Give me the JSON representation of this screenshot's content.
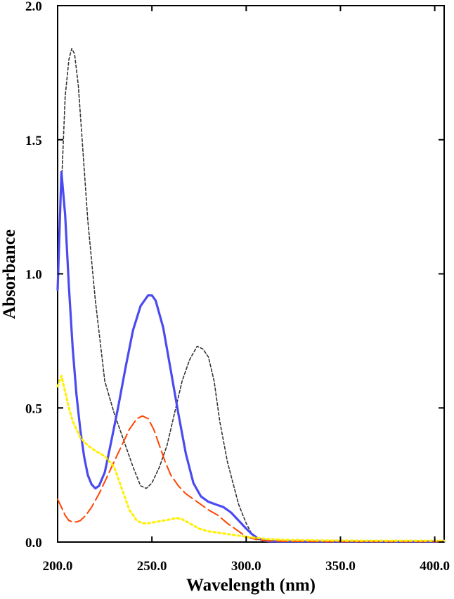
{
  "chart_data": {
    "type": "line",
    "title": "",
    "xlabel": "Wavelength (nm)",
    "ylabel": "Absorbance",
    "xlim": [
      200,
      405
    ],
    "ylim": [
      0,
      2
    ],
    "xticks": [
      200,
      250,
      300,
      350,
      400
    ],
    "xtick_labels": [
      "200.0",
      "250.0",
      "300.0",
      "350.0",
      "400.0"
    ],
    "yticks": [
      0,
      0.5,
      1,
      1.5,
      2
    ],
    "ytick_labels": [
      "0.0",
      "0.5",
      "1.0",
      "1.5",
      "2.0"
    ],
    "grid": false,
    "legend": "none",
    "series": [
      {
        "color": "#333333",
        "style": "short-dash",
        "x": [
          202,
          204,
          206,
          207.5,
          209,
          211,
          213,
          216,
          220,
          225,
          230,
          235,
          240,
          244,
          247,
          250,
          254,
          258,
          262,
          266,
          270,
          274,
          277,
          280,
          283,
          286,
          290,
          293,
          296,
          300,
          303,
          306,
          310,
          320,
          340,
          360,
          380,
          400,
          405
        ],
        "y": [
          1.32,
          1.66,
          1.8,
          1.84,
          1.82,
          1.7,
          1.5,
          1.2,
          0.9,
          0.6,
          0.48,
          0.38,
          0.28,
          0.21,
          0.2,
          0.22,
          0.28,
          0.36,
          0.48,
          0.6,
          0.68,
          0.73,
          0.72,
          0.69,
          0.6,
          0.45,
          0.3,
          0.22,
          0.14,
          0.07,
          0.03,
          0.01,
          0.005,
          0.003,
          0.002,
          0.002,
          0.002,
          0.002,
          0.002
        ]
      },
      {
        "color": "#4a4af0",
        "style": "solid",
        "x": [
          200,
          202,
          204,
          206,
          208,
          210,
          212,
          214,
          216,
          218,
          220,
          222,
          225,
          228,
          232,
          236,
          240,
          244,
          248,
          250,
          252,
          256,
          260,
          264,
          268,
          272,
          276,
          280,
          284,
          288,
          292,
          296,
          300,
          303,
          306,
          309,
          312,
          320,
          340,
          360,
          380,
          400,
          405
        ],
        "y": [
          0.94,
          1.38,
          1.22,
          0.95,
          0.72,
          0.55,
          0.42,
          0.32,
          0.25,
          0.215,
          0.2,
          0.21,
          0.26,
          0.36,
          0.5,
          0.65,
          0.79,
          0.88,
          0.92,
          0.92,
          0.9,
          0.8,
          0.64,
          0.48,
          0.33,
          0.22,
          0.17,
          0.15,
          0.14,
          0.13,
          0.11,
          0.08,
          0.05,
          0.03,
          0.015,
          0.006,
          0.003,
          0.002,
          0.002,
          0.002,
          0.002,
          0.002,
          0.002
        ]
      },
      {
        "color": "#ff4500",
        "style": "long-dash",
        "x": [
          200,
          202,
          204,
          206,
          208,
          210,
          212,
          215,
          218,
          222,
          226,
          230,
          234,
          238,
          242,
          245,
          248,
          251,
          254,
          257,
          260,
          264,
          268,
          272,
          276,
          280,
          285,
          290,
          295,
          300,
          305,
          310,
          320,
          340,
          360,
          380,
          400,
          405
        ],
        "y": [
          0.16,
          0.13,
          0.1,
          0.08,
          0.075,
          0.075,
          0.08,
          0.1,
          0.13,
          0.18,
          0.24,
          0.3,
          0.36,
          0.42,
          0.46,
          0.47,
          0.46,
          0.42,
          0.36,
          0.3,
          0.25,
          0.21,
          0.18,
          0.16,
          0.14,
          0.12,
          0.1,
          0.07,
          0.045,
          0.02,
          0.01,
          0.005,
          0.003,
          0.002,
          0.002,
          0.002,
          0.002,
          0.002
        ]
      },
      {
        "color": "#ffef00",
        "style": "dotted",
        "x": [
          200,
          202,
          204,
          206,
          208,
          212,
          216,
          220,
          225,
          230,
          234,
          238,
          242,
          245,
          248,
          252,
          256,
          260,
          263,
          266,
          270,
          275,
          280,
          285,
          290,
          295,
          300,
          310,
          320,
          340,
          360,
          380,
          400,
          405
        ],
        "y": [
          0.58,
          0.62,
          0.56,
          0.5,
          0.45,
          0.39,
          0.36,
          0.34,
          0.32,
          0.28,
          0.2,
          0.12,
          0.08,
          0.07,
          0.07,
          0.075,
          0.08,
          0.085,
          0.09,
          0.085,
          0.07,
          0.05,
          0.04,
          0.035,
          0.03,
          0.025,
          0.02,
          0.012,
          0.008,
          0.006,
          0.005,
          0.005,
          0.005,
          0.005
        ]
      }
    ]
  }
}
